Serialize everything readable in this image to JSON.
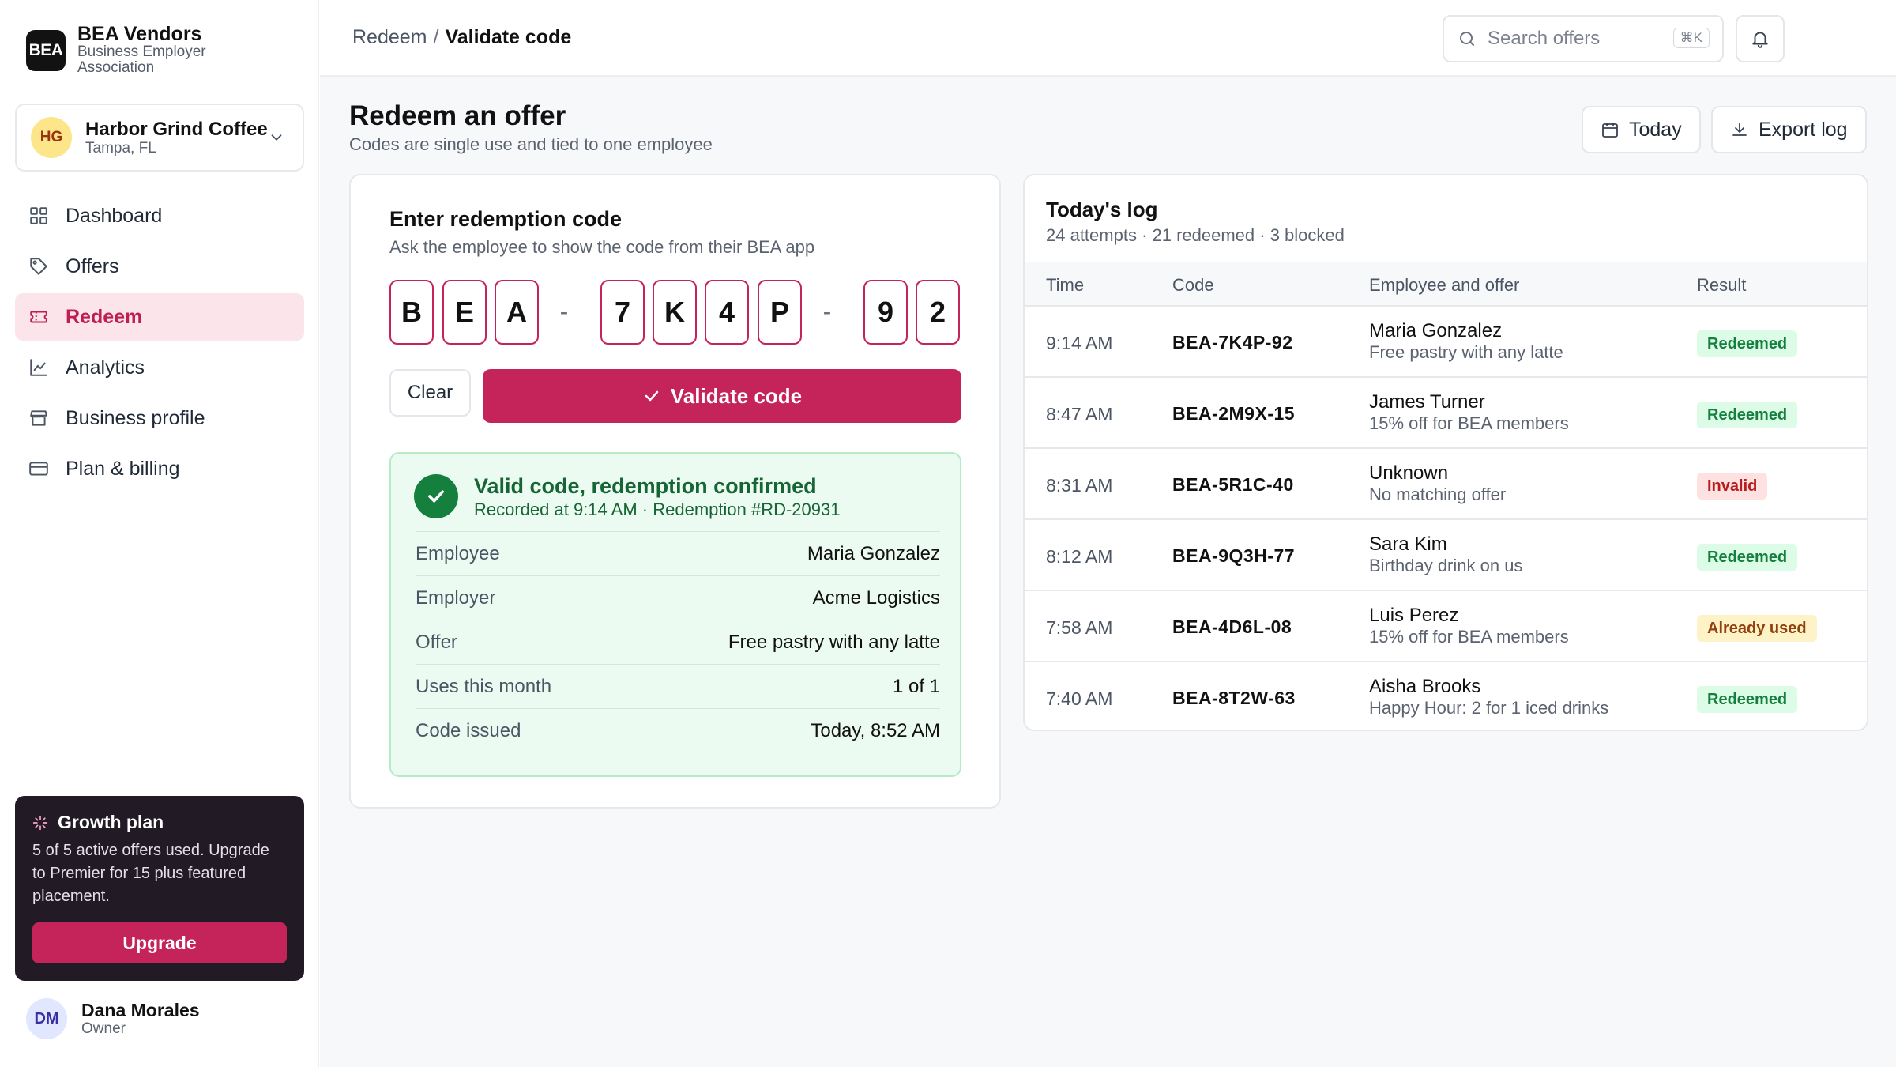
{
  "brand": {
    "logo": "BEA",
    "name": "BEA Vendors",
    "subtitle": "Business Employer Association"
  },
  "business": {
    "initials": "HG",
    "name": "Harbor Grind Coffee",
    "location": "Tampa, FL"
  },
  "nav": [
    {
      "label": "Dashboard",
      "icon": "grid-icon",
      "active": false
    },
    {
      "label": "Offers",
      "icon": "tag-icon",
      "active": false
    },
    {
      "label": "Redeem",
      "icon": "ticket-icon",
      "active": true
    },
    {
      "label": "Analytics",
      "icon": "line-chart-icon",
      "active": false
    },
    {
      "label": "Business profile",
      "icon": "store-icon",
      "active": false
    },
    {
      "label": "Plan & billing",
      "icon": "credit-card-icon",
      "active": false
    }
  ],
  "plan": {
    "title": "Growth plan",
    "description": "5 of 5 active offers used. Upgrade to Premier for 15 plus featured placement.",
    "button": "Upgrade"
  },
  "user": {
    "initials": "DM",
    "name": "Dana Morales",
    "role": "Owner"
  },
  "breadcrumb": {
    "parent": "Redeem",
    "separator": "/",
    "current": "Validate code"
  },
  "search": {
    "placeholder": "Search offers",
    "shortcut": "⌘K"
  },
  "page": {
    "title": "Redeem an offer",
    "subtitle": "Codes are single use and tied to one employee",
    "today_button": "Today",
    "export_button": "Export log"
  },
  "redeem": {
    "title": "Enter redemption code",
    "subtitle": "Ask the employee to show the code from their BEA app",
    "chars": [
      "B",
      "E",
      "A",
      "7",
      "K",
      "4",
      "P",
      "9",
      "2"
    ],
    "dash": "-",
    "clear_button": "Clear",
    "validate_button": "Validate code"
  },
  "result": {
    "title": "Valid code, redemption confirmed",
    "subtitle": "Recorded at 9:14 AM · Redemption #RD-20931",
    "rows": [
      {
        "label": "Employee",
        "value": "Maria Gonzalez"
      },
      {
        "label": "Employer",
        "value": "Acme Logistics"
      },
      {
        "label": "Offer",
        "value": "Free pastry with any latte"
      },
      {
        "label": "Uses this month",
        "value": "1 of 1"
      },
      {
        "label": "Code issued",
        "value": "Today, 8:52 AM"
      }
    ]
  },
  "log": {
    "title": "Today's log",
    "subtitle": "24 attempts · 21 redeemed · 3 blocked",
    "headers": [
      "Time",
      "Code",
      "Employee and offer",
      "Result"
    ],
    "rows": [
      {
        "time": "9:14 AM",
        "code": "BEA-7K4P-92",
        "employee": "Maria Gonzalez",
        "offer": "Free pastry with any latte",
        "result": "Redeemed",
        "status": "success"
      },
      {
        "time": "8:47 AM",
        "code": "BEA-2M9X-15",
        "employee": "James Turner",
        "offer": "15% off for BEA members",
        "result": "Redeemed",
        "status": "success"
      },
      {
        "time": "8:31 AM",
        "code": "BEA-5R1C-40",
        "employee": "Unknown",
        "offer": "No matching offer",
        "result": "Invalid",
        "status": "error"
      },
      {
        "time": "8:12 AM",
        "code": "BEA-9Q3H-77",
        "employee": "Sara Kim",
        "offer": "Birthday drink on us",
        "result": "Redeemed",
        "status": "success"
      },
      {
        "time": "7:58 AM",
        "code": "BEA-4D6L-08",
        "employee": "Luis Perez",
        "offer": "15% off for BEA members",
        "result": "Already used",
        "status": "warning"
      },
      {
        "time": "7:40 AM",
        "code": "BEA-8T2W-63",
        "employee": "Aisha Brooks",
        "offer": "Happy Hour: 2 for 1 iced drinks",
        "result": "Redeemed",
        "status": "success"
      }
    ]
  },
  "colors": {
    "accent": "#c4245a",
    "success": "#15803d",
    "error": "#b91c1c",
    "warning": "#92400e",
    "sidebar_active_bg": "#fbe4ea",
    "plan_bg": "#221a25"
  }
}
